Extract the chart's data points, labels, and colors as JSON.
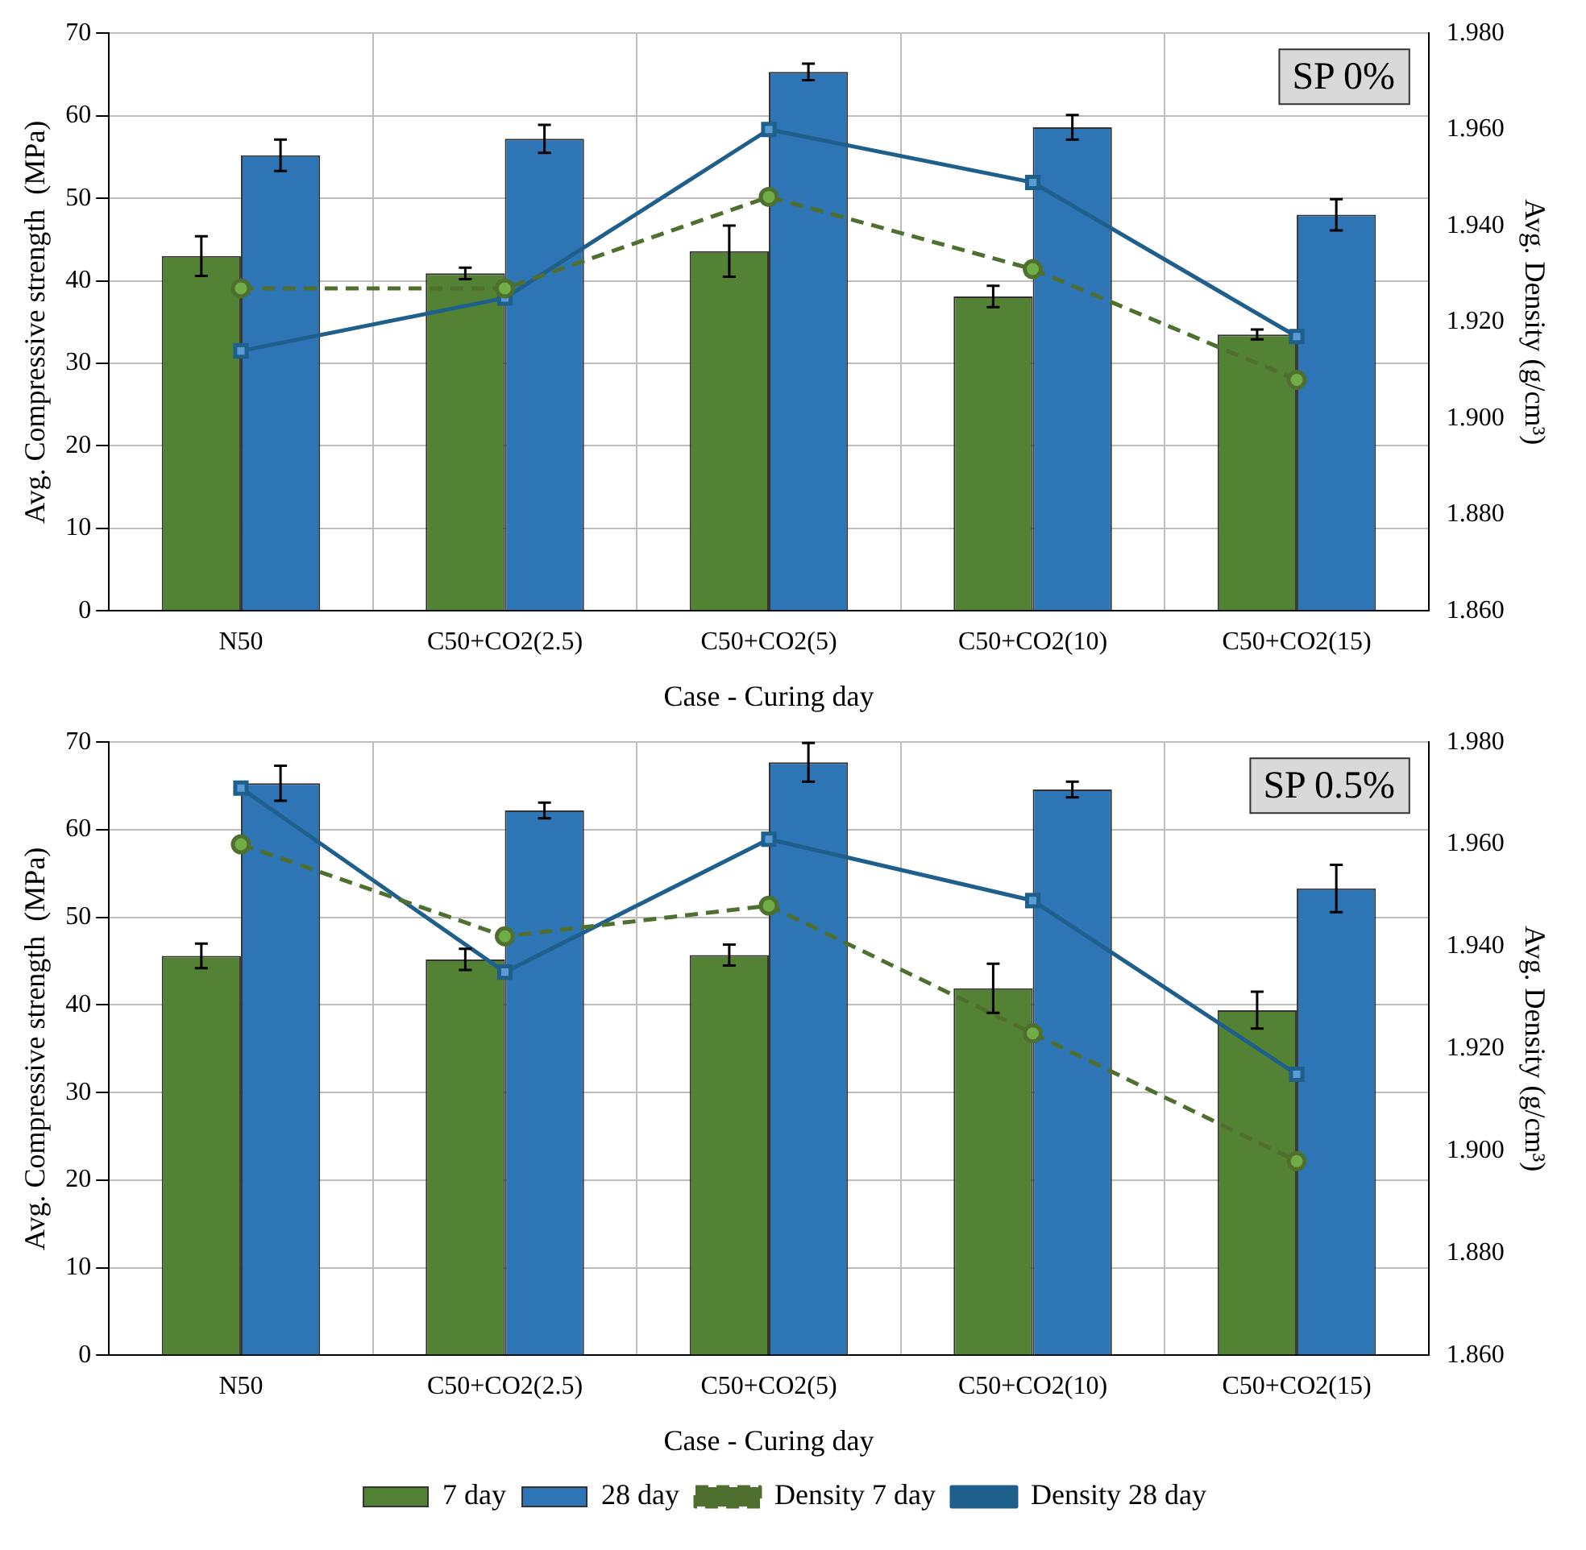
{
  "chart_data": [
    {
      "type": "bar",
      "categories": [
        "N50",
        "C50+CO2(2.5)",
        "C50+CO2(5)",
        "C50+CO2(10)",
        "C50+CO2(15)"
      ],
      "xlabel": "Case - Curing day",
      "ylabel": "Avg. Compressive strength  (MPa)",
      "y2label": "Avg. Density (g/cm³)",
      "ylim": [
        0,
        70
      ],
      "yticks": [
        0,
        10,
        20,
        30,
        40,
        50,
        60,
        70
      ],
      "y2lim": [
        1.86,
        1.98
      ],
      "y2ticks": [
        {
          "value": 1.86,
          "label": "1.860"
        },
        {
          "value": 1.88,
          "label": "1.880"
        },
        {
          "value": 1.9,
          "label": "1.900"
        },
        {
          "value": 1.92,
          "label": "1.920"
        },
        {
          "value": 1.94,
          "label": "1.940"
        },
        {
          "value": 1.96,
          "label": "1.960"
        },
        {
          "value": 1.98,
          "label": "1.980"
        }
      ],
      "grid": true,
      "legend": false,
      "annotations": [
        "SP 0%"
      ],
      "series": [
        {
          "color": "#548235",
          "values": [
            43.0,
            40.9,
            43.6,
            38.1,
            33.5
          ],
          "errors": [
            2.4,
            0.7,
            3.1,
            1.3,
            0.6
          ]
        },
        {
          "color": "#2e75b6",
          "values": [
            55.2,
            57.2,
            65.3,
            58.6,
            48.0
          ],
          "errors": [
            1.9,
            1.7,
            1.0,
            1.5,
            1.9
          ]
        },
        {
          "type": "line",
          "axis": "y2",
          "color": "#4f6f2f",
          "marker": "circle",
          "line_style": "dashed",
          "values": [
            1.927,
            1.927,
            1.946,
            1.931,
            1.908
          ]
        },
        {
          "type": "line",
          "axis": "y2",
          "color": "#1f5f8b",
          "marker": "square",
          "line_style": "solid",
          "values": [
            1.914,
            1.925,
            1.96,
            1.949,
            1.917
          ]
        }
      ]
    },
    {
      "type": "bar",
      "categories": [
        "N50",
        "C50+CO2(2.5)",
        "C50+CO2(5)",
        "C50+CO2(10)",
        "C50+CO2(15)"
      ],
      "xlabel": "Case - Curing day",
      "ylabel": "Avg. Compressive strength  (MPa)",
      "y2label": "Avg. Density (g/cm³)",
      "ylim": [
        0,
        70
      ],
      "yticks": [
        0,
        10,
        20,
        30,
        40,
        50,
        60,
        70
      ],
      "y2lim": [
        1.86,
        1.98
      ],
      "y2ticks": [
        {
          "value": 1.86,
          "label": "1.860"
        },
        {
          "value": 1.88,
          "label": "1.880"
        },
        {
          "value": 1.9,
          "label": "1.900"
        },
        {
          "value": 1.92,
          "label": "1.920"
        },
        {
          "value": 1.94,
          "label": "1.940"
        },
        {
          "value": 1.96,
          "label": "1.960"
        },
        {
          "value": 1.98,
          "label": "1.980"
        }
      ],
      "grid": true,
      "legend": "bottom",
      "annotations": [
        "SP 0.5%"
      ],
      "series": [
        {
          "name": "7 day",
          "color": "#548235",
          "values": [
            45.6,
            45.2,
            45.7,
            41.9,
            39.4
          ],
          "errors": [
            1.4,
            1.2,
            1.2,
            2.8,
            2.1
          ]
        },
        {
          "name": "28 day",
          "color": "#2e75b6",
          "values": [
            65.3,
            62.2,
            67.7,
            64.6,
            53.3
          ],
          "errors": [
            2.0,
            0.9,
            2.2,
            0.9,
            2.7
          ]
        },
        {
          "name": "Density 7 day",
          "type": "line",
          "axis": "y2",
          "color": "#4f6f2f",
          "marker": "circle",
          "line_style": "dashed",
          "values": [
            1.96,
            1.942,
            1.948,
            1.923,
            1.898
          ]
        },
        {
          "name": "Density 28 day",
          "type": "line",
          "axis": "y2",
          "color": "#1f5f8b",
          "marker": "square",
          "line_style": "solid",
          "values": [
            1.971,
            1.935,
            1.961,
            1.949,
            1.915
          ]
        }
      ]
    }
  ]
}
